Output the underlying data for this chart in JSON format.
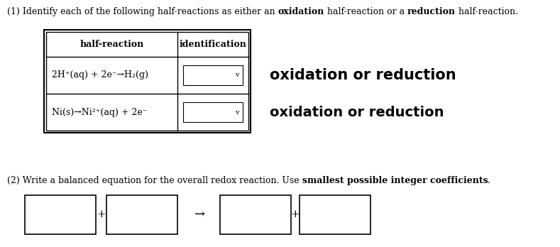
{
  "title1_normal1": "(1) Identify each of the following half-reactions as either an ",
  "title1_bold1": "oxidation",
  "title1_normal2": " half-reaction or a ",
  "title1_bold2": "reduction",
  "title1_normal3": " half-reaction.",
  "col1_header": "half-reaction",
  "col2_header": "identification",
  "row1_reaction": "2H⁺(aq) + 2e⁻→H₂(g)",
  "row2_reaction": "Ni(s)→Ni²⁺(aq) + 2e⁻",
  "label1": "oxidation or reduction",
  "label2": "oxidation or reduction",
  "title2_normal1": "(2) Write a balanced equation for the overall redox reaction. Use ",
  "title2_bold": "smallest possible integer coefficients",
  "title2_normal2": ".",
  "bg_color": "#ffffff",
  "figsize": [
    7.89,
    3.48
  ],
  "dpi": 100
}
